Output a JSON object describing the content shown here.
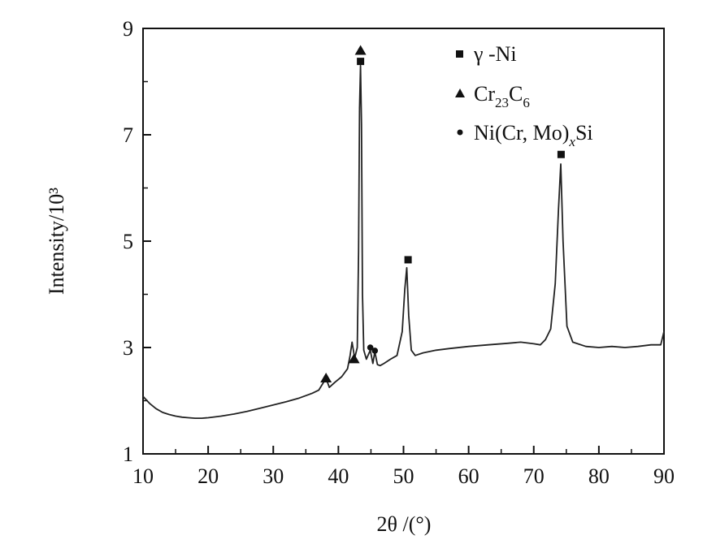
{
  "chart_data": {
    "type": "line",
    "title": "",
    "xlabel": "2θ /(°)",
    "ylabel": "Intensity/10³",
    "xlim": [
      10,
      90
    ],
    "ylim": [
      1,
      9
    ],
    "x_ticks": [
      10,
      20,
      30,
      40,
      50,
      60,
      70,
      80,
      90
    ],
    "y_ticks": [
      1,
      3,
      5,
      7,
      9
    ],
    "grid": false,
    "legend_position": "top-right",
    "series": [
      {
        "x": [
          10,
          11,
          12,
          13,
          14,
          15,
          16,
          17,
          18,
          19,
          20,
          22,
          24,
          26,
          28,
          30,
          32,
          34,
          36,
          37,
          37.6,
          38.1,
          38.6,
          39.5,
          40.5,
          41.4,
          41.8,
          42.1,
          42.5,
          42.9,
          43.1,
          43.25,
          43.4,
          43.55,
          43.7,
          43.9,
          44.3,
          44.9,
          45.3,
          45.6,
          46.0,
          46.4,
          47,
          48,
          49,
          49.8,
          50.2,
          50.5,
          50.8,
          51.2,
          51.8,
          53,
          55,
          57,
          60,
          63,
          66,
          68,
          70,
          71,
          71.8,
          72.6,
          73.3,
          73.8,
          74.15,
          74.5,
          75.1,
          76,
          78,
          80,
          82,
          84,
          86,
          88,
          89.5,
          90
        ],
        "y": [
          2.08,
          1.95,
          1.85,
          1.78,
          1.74,
          1.71,
          1.69,
          1.68,
          1.67,
          1.67,
          1.68,
          1.71,
          1.75,
          1.8,
          1.86,
          1.92,
          1.98,
          2.05,
          2.14,
          2.2,
          2.32,
          2.42,
          2.25,
          2.35,
          2.45,
          2.6,
          2.85,
          3.1,
          2.8,
          3.0,
          4.8,
          7.5,
          8.3,
          7.2,
          4.0,
          2.95,
          2.78,
          2.95,
          2.7,
          2.92,
          2.68,
          2.66,
          2.7,
          2.78,
          2.85,
          3.3,
          4.1,
          4.5,
          3.6,
          2.95,
          2.85,
          2.9,
          2.95,
          2.98,
          3.02,
          3.05,
          3.08,
          3.1,
          3.07,
          3.05,
          3.15,
          3.35,
          4.2,
          5.6,
          6.45,
          5.0,
          3.4,
          3.1,
          3.02,
          3.0,
          3.02,
          3.0,
          3.02,
          3.05,
          3.05,
          3.3
        ]
      }
    ],
    "markers": [
      {
        "phase": "gamma-Ni",
        "symbol": "square",
        "x": [
          43.4,
          50.7,
          74.2
        ],
        "y": [
          8.38,
          4.65,
          6.63
        ]
      },
      {
        "phase": "Cr23C6",
        "symbol": "triangle",
        "x": [
          38.1,
          42.4,
          43.4
        ],
        "y": [
          2.42,
          2.78,
          8.58
        ]
      },
      {
        "phase": "Ni(Cr,Mo)xSi",
        "symbol": "circle",
        "x": [
          44.9,
          45.6
        ],
        "y": [
          3.0,
          2.94
        ]
      }
    ],
    "legend": [
      {
        "symbol": "square",
        "text": "γ -Ni"
      },
      {
        "symbol": "triangle",
        "main": "Cr",
        "sub1": "23",
        "mid": "C",
        "sub2": "6"
      },
      {
        "symbol": "circle",
        "pre": "Ni(Cr, Mo)",
        "sub": "x",
        "post": "Si"
      }
    ]
  }
}
